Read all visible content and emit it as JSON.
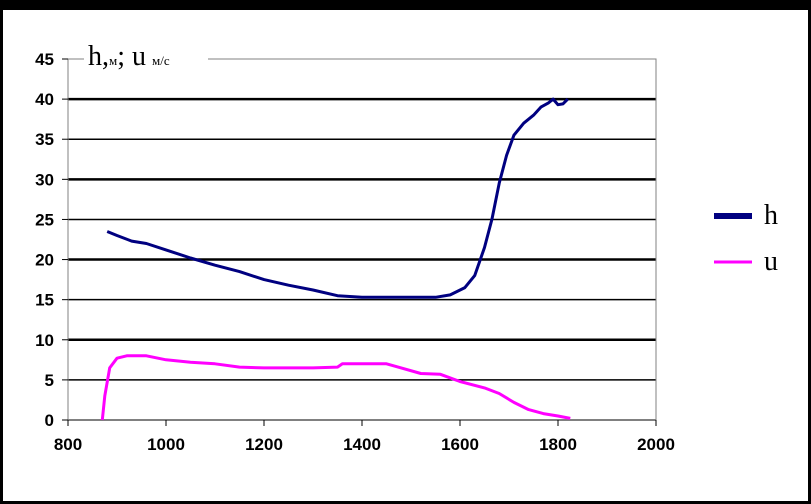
{
  "chart_data": {
    "type": "line",
    "title": "",
    "ylabel": {
      "h": "h",
      "h_unit": "м",
      "sep": ";",
      "u": "u",
      "u_unit": "м/с"
    },
    "xlabel": "",
    "xlim": [
      800,
      2000
    ],
    "ylim": [
      0,
      45
    ],
    "x_ticks": [
      "800",
      "1000",
      "1200",
      "1400",
      "1600",
      "1800",
      "2000"
    ],
    "y_ticks": [
      "0",
      "5",
      "10",
      "15",
      "20",
      "25",
      "30",
      "35",
      "40",
      "45"
    ],
    "legend_position": "right",
    "grid": true,
    "series": [
      {
        "name": "h",
        "color": "#000080",
        "points": [
          [
            880,
            23.5
          ],
          [
            900,
            23.0
          ],
          [
            930,
            22.3
          ],
          [
            960,
            22.0
          ],
          [
            1000,
            21.2
          ],
          [
            1050,
            20.2
          ],
          [
            1100,
            19.3
          ],
          [
            1150,
            18.5
          ],
          [
            1200,
            17.5
          ],
          [
            1250,
            16.8
          ],
          [
            1300,
            16.2
          ],
          [
            1350,
            15.5
          ],
          [
            1400,
            15.3
          ],
          [
            1450,
            15.3
          ],
          [
            1500,
            15.3
          ],
          [
            1550,
            15.3
          ],
          [
            1580,
            15.6
          ],
          [
            1610,
            16.5
          ],
          [
            1630,
            18.0
          ],
          [
            1650,
            21.5
          ],
          [
            1665,
            25.0
          ],
          [
            1680,
            29.5
          ],
          [
            1695,
            33.0
          ],
          [
            1710,
            35.5
          ],
          [
            1730,
            37.0
          ],
          [
            1750,
            38.0
          ],
          [
            1765,
            39.0
          ],
          [
            1780,
            39.5
          ],
          [
            1790,
            40.0
          ],
          [
            1800,
            39.3
          ],
          [
            1810,
            39.4
          ],
          [
            1820,
            40.0
          ]
        ]
      },
      {
        "name": "u",
        "color": "#ff00ff",
        "points": [
          [
            870,
            0.0
          ],
          [
            875,
            3.0
          ],
          [
            885,
            6.5
          ],
          [
            900,
            7.7
          ],
          [
            920,
            8.0
          ],
          [
            960,
            8.0
          ],
          [
            1000,
            7.5
          ],
          [
            1050,
            7.2
          ],
          [
            1100,
            7.0
          ],
          [
            1150,
            6.6
          ],
          [
            1200,
            6.5
          ],
          [
            1250,
            6.5
          ],
          [
            1300,
            6.5
          ],
          [
            1350,
            6.6
          ],
          [
            1360,
            7.0
          ],
          [
            1400,
            7.0
          ],
          [
            1450,
            7.0
          ],
          [
            1480,
            6.5
          ],
          [
            1520,
            5.8
          ],
          [
            1560,
            5.7
          ],
          [
            1600,
            4.8
          ],
          [
            1650,
            4.0
          ],
          [
            1680,
            3.3
          ],
          [
            1710,
            2.2
          ],
          [
            1740,
            1.3
          ],
          [
            1770,
            0.8
          ],
          [
            1800,
            0.5
          ],
          [
            1825,
            0.2
          ]
        ]
      }
    ]
  }
}
